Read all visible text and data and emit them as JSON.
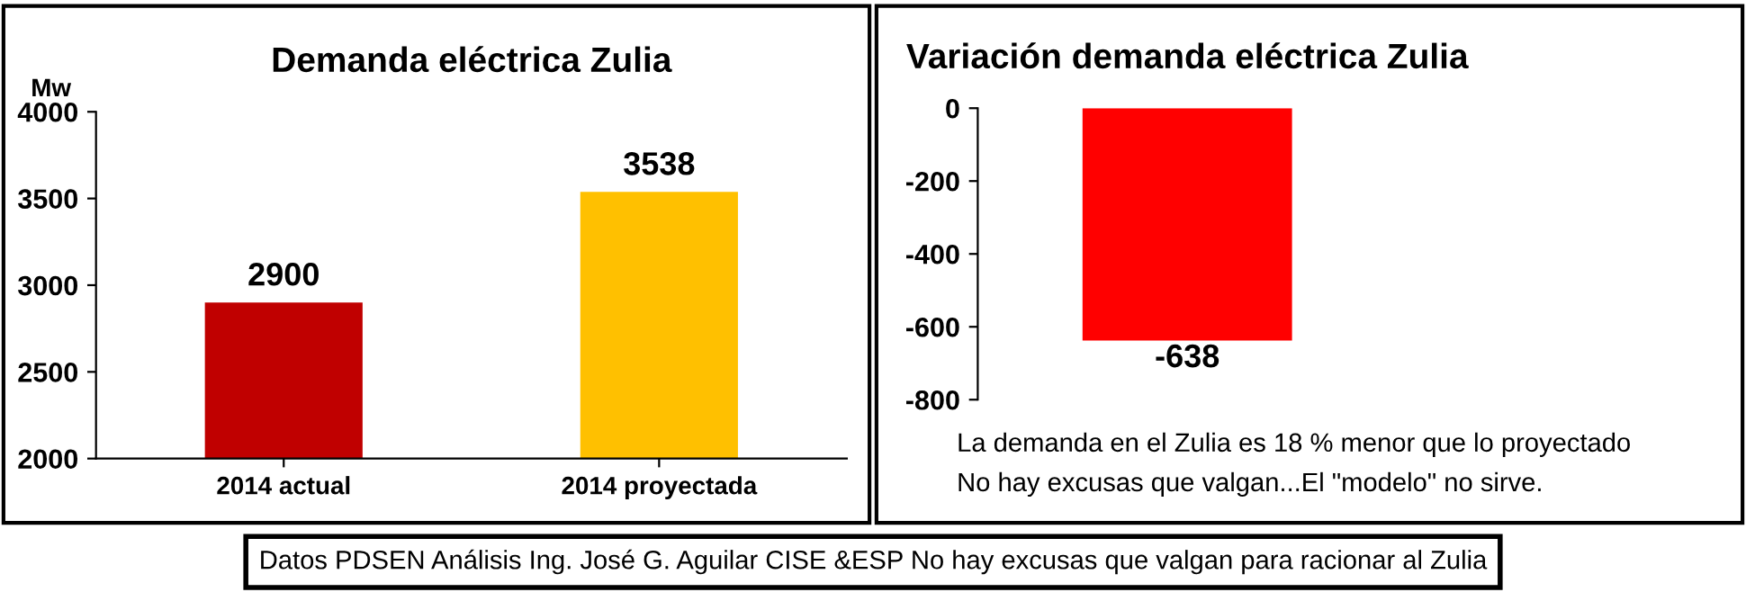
{
  "chart_data": [
    {
      "type": "bar",
      "title": "Demanda eléctrica Zulia",
      "ylabel": "Mw",
      "categories": [
        "2014 actual",
        "2014 proyectada"
      ],
      "values": [
        2900,
        3538
      ],
      "colors": [
        "#c00000",
        "#ffc000"
      ],
      "ylim": [
        2000,
        4000
      ],
      "yticks": [
        2000,
        2500,
        3000,
        3500,
        4000
      ],
      "data_labels": true
    },
    {
      "type": "bar",
      "title": "Variación demanda eléctrica Zulia",
      "categories": [
        null
      ],
      "values": [
        -638
      ],
      "colors": [
        "#ff0000"
      ],
      "ylim": [
        -800,
        0
      ],
      "yticks": [
        -800,
        -600,
        -400,
        -200,
        0
      ],
      "data_labels": true,
      "tick_labels": "y",
      "annotations": [
        "La demanda en el Zulia es 18 % menor que lo proyectado",
        "No hay excusas que valgan...El \"modelo\" no sirve.",
        "Datos PDSEN Análisis Ing. José G. Aguilar CISE &ESP No hay excusas que valgan para racionar al Zulia"
      ]
    }
  ]
}
